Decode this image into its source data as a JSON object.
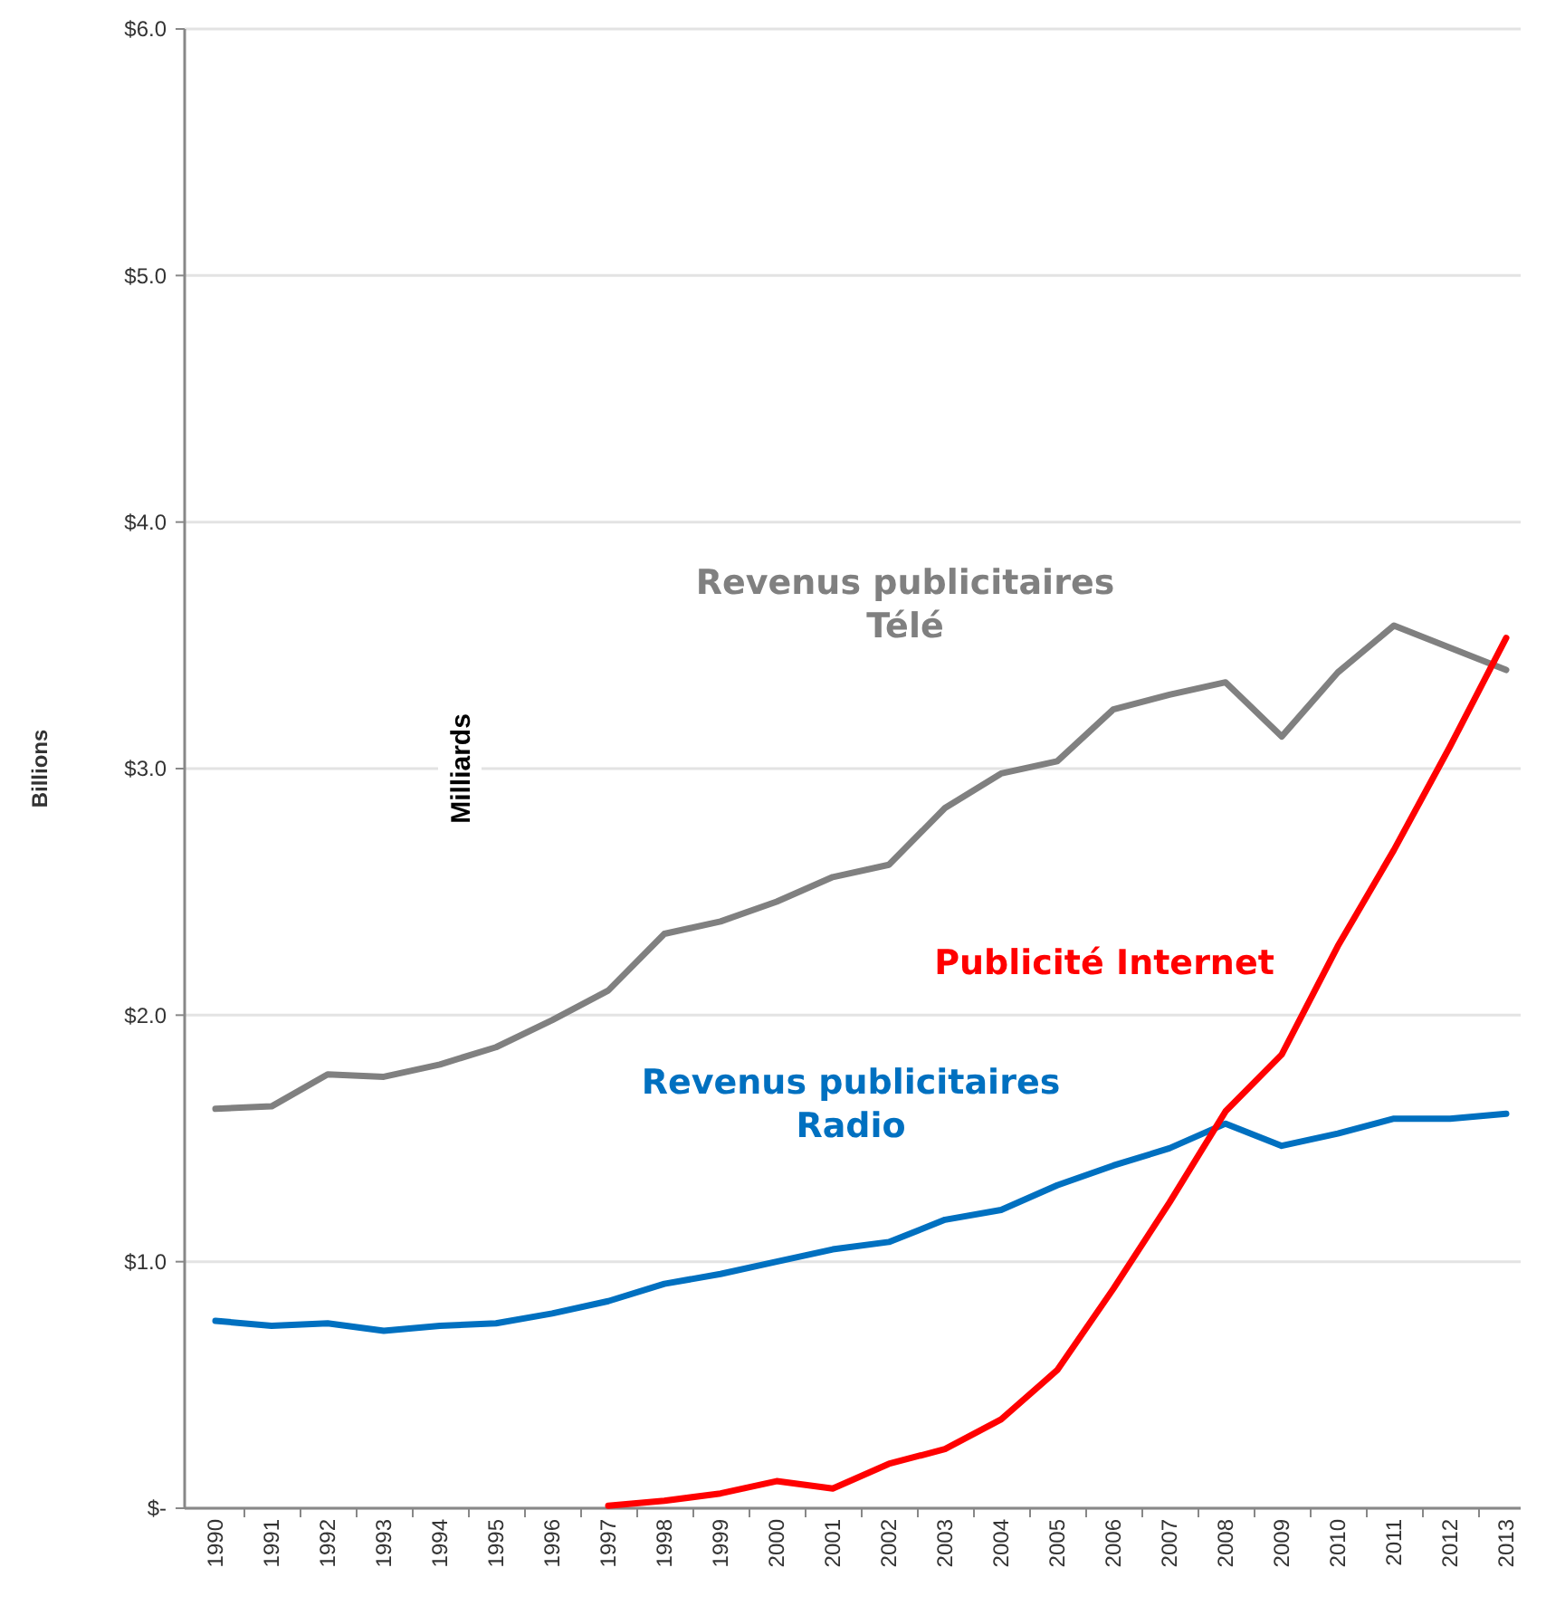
{
  "chart_data": {
    "type": "line",
    "ylabel": "Billions",
    "categories": [
      "1990",
      "1991",
      "1992",
      "1993",
      "1994",
      "1995",
      "1996",
      "1997",
      "1998",
      "1999",
      "2000",
      "2001",
      "2002",
      "2003",
      "2004",
      "2005",
      "2006",
      "2007",
      "2008",
      "2009",
      "2010",
      "2011",
      "2012",
      "2013"
    ],
    "series": [
      {
        "name": "Revenus publicitaires\nTélé",
        "color": "#808080",
        "values": [
          1.62,
          1.63,
          1.76,
          1.75,
          1.8,
          1.87,
          1.98,
          2.1,
          2.33,
          2.38,
          2.46,
          2.56,
          2.61,
          2.84,
          2.98,
          3.03,
          3.24,
          3.3,
          3.35,
          3.13,
          3.39,
          3.58,
          3.49,
          3.4
        ]
      },
      {
        "name": "Revenus publicitaires\nRadio",
        "color": "#0070c0",
        "values": [
          0.76,
          0.74,
          0.75,
          0.72,
          0.74,
          0.75,
          0.79,
          0.84,
          0.91,
          0.95,
          1.0,
          1.05,
          1.08,
          1.17,
          1.21,
          1.31,
          1.39,
          1.46,
          1.56,
          1.47,
          1.52,
          1.58,
          1.58,
          1.6
        ]
      },
      {
        "name": "Publicité Internet",
        "color": "#ff0000",
        "values": [
          null,
          null,
          null,
          null,
          null,
          null,
          null,
          0.01,
          0.03,
          0.06,
          0.11,
          0.08,
          0.18,
          0.24,
          0.36,
          0.56,
          0.89,
          1.24,
          1.61,
          1.84,
          2.28,
          2.67,
          3.09,
          3.53
        ]
      }
    ],
    "ylim": [
      0,
      6
    ],
    "yticks": [
      {
        "value": 0,
        "label": "$-"
      },
      {
        "value": 1,
        "label": "$1.0"
      },
      {
        "value": 2,
        "label": "$2.0"
      },
      {
        "value": 3,
        "label": "$3.0"
      },
      {
        "value": 4,
        "label": "$4.0"
      },
      {
        "value": 5,
        "label": "$5.0"
      },
      {
        "value": 6,
        "label": "$6.0"
      }
    ],
    "grid": "y",
    "legend": false,
    "marker": "none",
    "line_style": "solid",
    "annotations": [
      "Milliards"
    ]
  }
}
